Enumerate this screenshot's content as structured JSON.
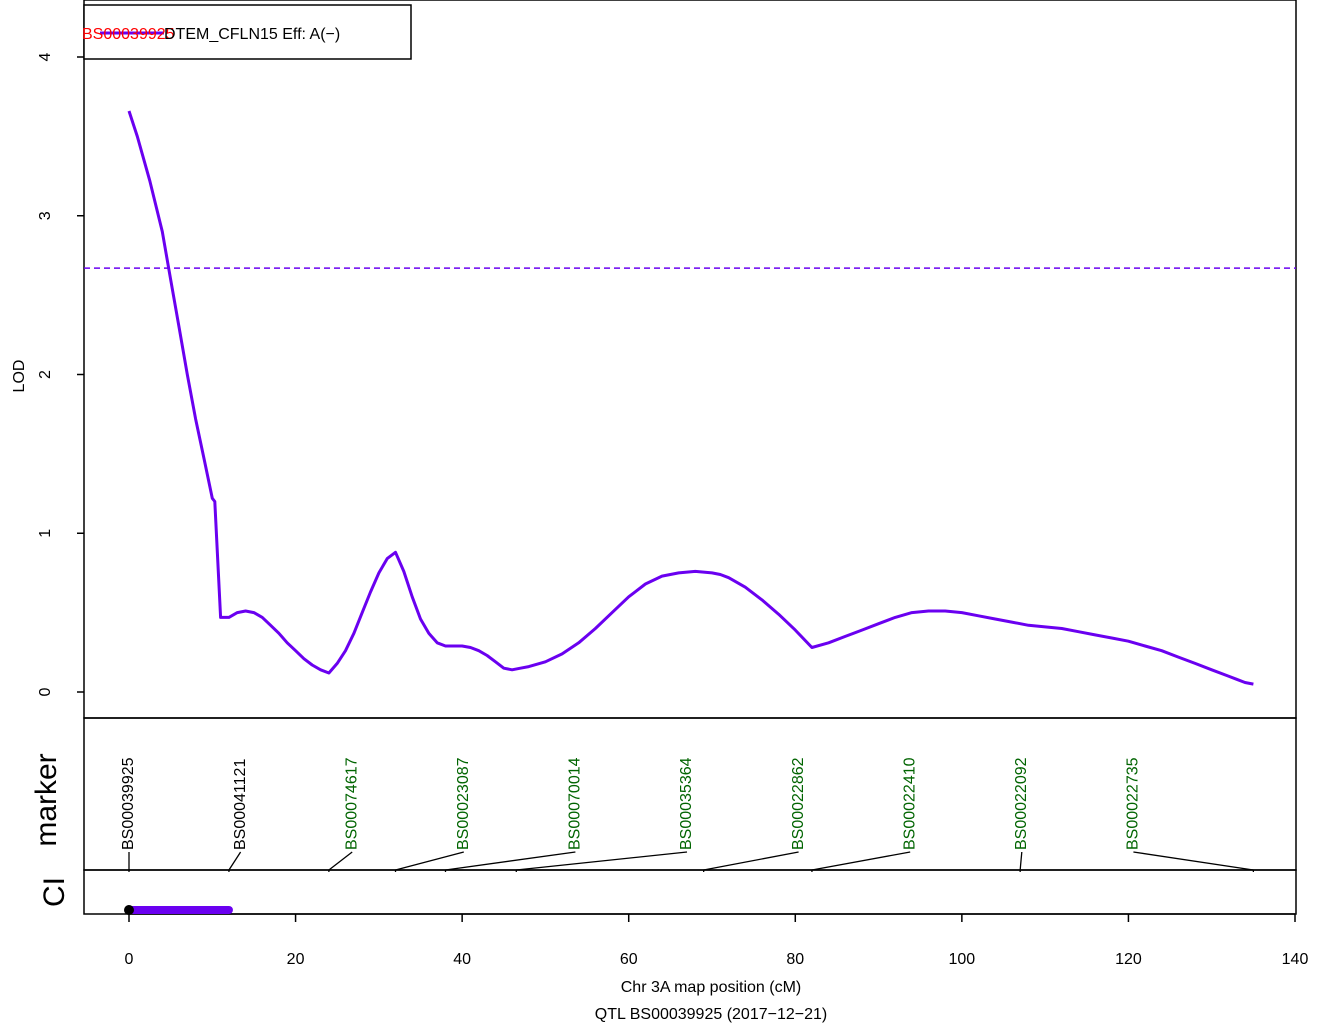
{
  "chart_data": {
    "type": "line",
    "title": "",
    "xlabel": "Chr 3A map position (cM)",
    "subtitle": "QTL BS00039925 (2017−12−21)",
    "ylabel": "LOD",
    "marker_panel_label": "marker",
    "ci_panel_label": "CI",
    "xlim": [
      0,
      140
    ],
    "ylim": [
      0,
      4
    ],
    "x_ticks": [
      "0",
      "20",
      "40",
      "60",
      "80",
      "100",
      "120",
      "140"
    ],
    "y_ticks": [
      "0",
      "1",
      "2",
      "3",
      "4"
    ],
    "threshold": 2.67,
    "legend": {
      "marker": "BS00039925",
      "trait": "DTEM_CFLN15 Eff: A(−)",
      "placement": "top-left"
    },
    "series": [
      {
        "name": "DTEM_CFLN15",
        "color": "#6a00f0",
        "points": [
          [
            0,
            3.66
          ],
          [
            1,
            3.5
          ],
          [
            2.5,
            3.22
          ],
          [
            4,
            2.9
          ],
          [
            5,
            2.6
          ],
          [
            6,
            2.3
          ],
          [
            7,
            2.0
          ],
          [
            8,
            1.72
          ],
          [
            9,
            1.47
          ],
          [
            10,
            1.22
          ],
          [
            10.3,
            1.2
          ],
          [
            11,
            0.47
          ],
          [
            12,
            0.47
          ],
          [
            13,
            0.5
          ],
          [
            14,
            0.51
          ],
          [
            15,
            0.5
          ],
          [
            16,
            0.47
          ],
          [
            17,
            0.42
          ],
          [
            18,
            0.37
          ],
          [
            19,
            0.31
          ],
          [
            20,
            0.26
          ],
          [
            21,
            0.21
          ],
          [
            22,
            0.17
          ],
          [
            23,
            0.14
          ],
          [
            24,
            0.12
          ],
          [
            25,
            0.18
          ],
          [
            26,
            0.26
          ],
          [
            27,
            0.37
          ],
          [
            28,
            0.5
          ],
          [
            29,
            0.63
          ],
          [
            30,
            0.75
          ],
          [
            31,
            0.84
          ],
          [
            32,
            0.88
          ],
          [
            33,
            0.76
          ],
          [
            34,
            0.6
          ],
          [
            35,
            0.46
          ],
          [
            36,
            0.37
          ],
          [
            37,
            0.31
          ],
          [
            38,
            0.29
          ],
          [
            39,
            0.29
          ],
          [
            40,
            0.29
          ],
          [
            41,
            0.28
          ],
          [
            42,
            0.26
          ],
          [
            43,
            0.23
          ],
          [
            44,
            0.19
          ],
          [
            45,
            0.15
          ],
          [
            46,
            0.14
          ],
          [
            47,
            0.15
          ],
          [
            48,
            0.16
          ],
          [
            50,
            0.19
          ],
          [
            52,
            0.24
          ],
          [
            54,
            0.31
          ],
          [
            56,
            0.4
          ],
          [
            58,
            0.5
          ],
          [
            60,
            0.6
          ],
          [
            62,
            0.68
          ],
          [
            64,
            0.73
          ],
          [
            66,
            0.75
          ],
          [
            68,
            0.76
          ],
          [
            70,
            0.75
          ],
          [
            71,
            0.74
          ],
          [
            72,
            0.72
          ],
          [
            74,
            0.66
          ],
          [
            76,
            0.58
          ],
          [
            78,
            0.49
          ],
          [
            80,
            0.39
          ],
          [
            82,
            0.28
          ],
          [
            84,
            0.31
          ],
          [
            86,
            0.35
          ],
          [
            88,
            0.39
          ],
          [
            90,
            0.43
          ],
          [
            92,
            0.47
          ],
          [
            94,
            0.5
          ],
          [
            96,
            0.51
          ],
          [
            98,
            0.51
          ],
          [
            100,
            0.5
          ],
          [
            102,
            0.48
          ],
          [
            104,
            0.46
          ],
          [
            106,
            0.44
          ],
          [
            108,
            0.42
          ],
          [
            110,
            0.41
          ],
          [
            112,
            0.4
          ],
          [
            114,
            0.38
          ],
          [
            116,
            0.36
          ],
          [
            118,
            0.34
          ],
          [
            120,
            0.32
          ],
          [
            122,
            0.29
          ],
          [
            124,
            0.26
          ],
          [
            126,
            0.22
          ],
          [
            128,
            0.18
          ],
          [
            130,
            0.14
          ],
          [
            132,
            0.1
          ],
          [
            133,
            0.08
          ],
          [
            134,
            0.06
          ],
          [
            135,
            0.05
          ]
        ]
      }
    ],
    "markers": [
      {
        "name": "BS00039925",
        "position": 0,
        "color": "#000000"
      },
      {
        "name": "BS00041121",
        "position": 12,
        "color": "#000000"
      },
      {
        "name": "BS00074617",
        "position": 24,
        "color": "#006400"
      },
      {
        "name": "BS00023087",
        "position": 32,
        "color": "#006400"
      },
      {
        "name": "BS00070014",
        "position": 38,
        "color": "#006400"
      },
      {
        "name": "BS00035364",
        "position": 46.5,
        "color": "#006400"
      },
      {
        "name": "BS00022862",
        "position": 69,
        "color": "#006400"
      },
      {
        "name": "BS00022410",
        "position": 82,
        "color": "#006400"
      },
      {
        "name": "BS00022092",
        "position": 107,
        "color": "#006400"
      },
      {
        "name": "BS00022735",
        "position": 135,
        "color": "#006400"
      }
    ],
    "confidence_interval": {
      "start": 0,
      "end": 12,
      "peak": 0,
      "color": "#6a00f0"
    },
    "grid": false
  }
}
